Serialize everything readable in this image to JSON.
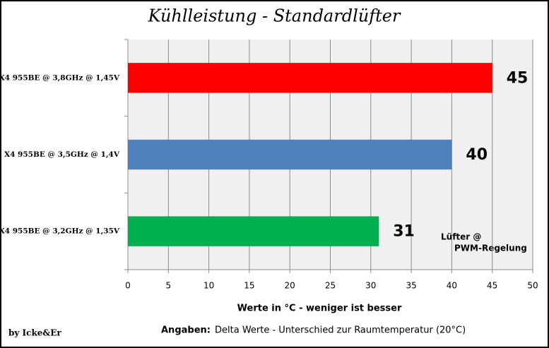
{
  "chart_data": {
    "type": "hbar",
    "title": "Kühlleistung - Standardlüfter",
    "categories": [
      "X4 955BE @ 3,8GHz @ 1,45V",
      "X4 955BE @ 3,5GHz @ 1,4V",
      "X4 955BE @ 3,2GHz @ 1,35V"
    ],
    "values": [
      45,
      40,
      31
    ],
    "colors": [
      "#ff0000",
      "#4f81bd",
      "#00b050"
    ],
    "xlim": [
      0,
      50
    ],
    "xticks": [
      0,
      5,
      10,
      15,
      20,
      25,
      30,
      35,
      40,
      45,
      50
    ],
    "grid": true,
    "xlabel": "Werte in °C - weniger ist besser",
    "annotation": [
      "Lüfter @",
      "PWM-Regelung"
    ],
    "credit": "by Icke&Er",
    "footer_label": "Angaben:",
    "footer_text": "Delta Werte - Unterschied zur Raumtemperatur (20°C)"
  }
}
